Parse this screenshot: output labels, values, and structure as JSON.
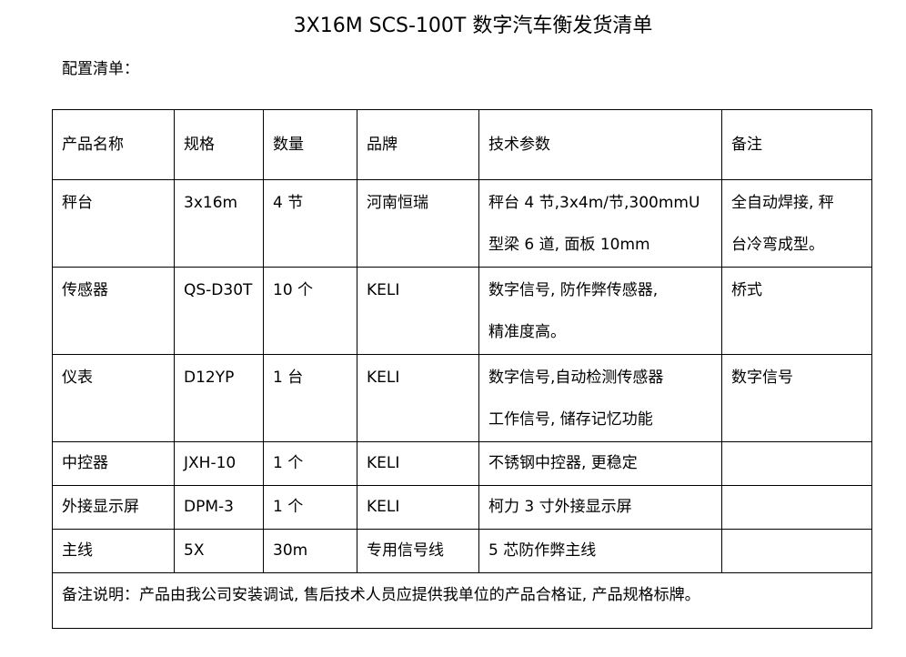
{
  "title": "3X16M SCS-100T 数字汽车衡发货清单",
  "subtitle": "配置清单：",
  "table": {
    "headers": [
      "产品名称",
      "规格",
      "数量",
      "品牌",
      "技术参数",
      "备注"
    ],
    "rows": [
      {
        "cells": [
          [
            "秤台"
          ],
          [
            "3x16m"
          ],
          [
            "4 节"
          ],
          [
            "河南恒瑞"
          ],
          [
            "秤台 4 节,3x4m/节,300mmU",
            "型梁 6 道, 面板 10mm"
          ],
          [
            "全自动焊接, 秤",
            "台冷弯成型。"
          ]
        ]
      },
      {
        "cells": [
          [
            "传感器"
          ],
          [
            "QS-D30T"
          ],
          [
            "10 个"
          ],
          [
            "KELI"
          ],
          [
            "数字信号, 防作弊传感器,",
            "精准度高。"
          ],
          [
            "桥式"
          ]
        ]
      },
      {
        "cells": [
          [
            "仪表"
          ],
          [
            "D12YP"
          ],
          [
            "1 台"
          ],
          [
            "KELI"
          ],
          [
            "数字信号,自动检测传感器",
            "工作信号, 储存记忆功能"
          ],
          [
            "数字信号"
          ]
        ]
      },
      {
        "cells": [
          [
            "中控器"
          ],
          [
            "JXH-10"
          ],
          [
            "1 个"
          ],
          [
            "KELI"
          ],
          [
            "不锈钢中控器, 更稳定"
          ],
          [
            ""
          ]
        ]
      },
      {
        "cells": [
          [
            "外接显示屏"
          ],
          [
            "DPM-3"
          ],
          [
            "1 个"
          ],
          [
            "KELI"
          ],
          [
            "柯力 3 寸外接显示屏"
          ],
          [
            ""
          ]
        ]
      },
      {
        "cells": [
          [
            "主线"
          ],
          [
            "5X"
          ],
          [
            "30m"
          ],
          [
            "专用信号线"
          ],
          [
            "5 芯防作弊主线"
          ],
          [
            ""
          ]
        ]
      }
    ],
    "note": "备注说明：产品由我公司安装调试, 售后技术人员应提供我单位的产品合格证, 产品规格标牌。"
  }
}
